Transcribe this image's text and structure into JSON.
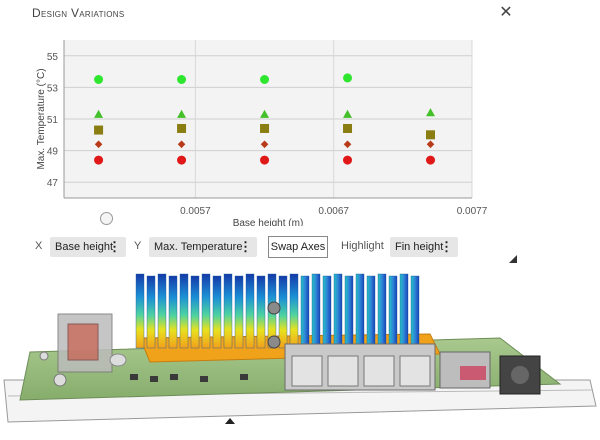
{
  "panel": {
    "title": "Design Variations",
    "close_icon": "close-icon"
  },
  "chart_data": {
    "type": "scatter",
    "title": "",
    "xlabel": "Base height (m)",
    "ylabel": "Max. Temperature (°C)",
    "xlim": [
      0.00475,
      0.0077
    ],
    "ylim": [
      46,
      56
    ],
    "xticks": [
      0.0057,
      0.0067,
      0.0077
    ],
    "xtick_labels": [
      "0.0057",
      "0.0067",
      "0.0077"
    ],
    "yticks": [
      47,
      49,
      51,
      53,
      55
    ],
    "grid": true,
    "series": [
      {
        "color": "#2ee62e",
        "marker": "circle",
        "x": [
          0.005,
          0.0056,
          0.0062,
          0.0068,
          0.0074
        ],
        "y": [
          53.5,
          53.5,
          53.5,
          53.6,
          null
        ]
      },
      {
        "color": "#43c02a",
        "marker": "triangle",
        "x": [
          0.005,
          0.0056,
          0.0062,
          0.0068,
          0.0074
        ],
        "y": [
          51.3,
          51.3,
          51.3,
          51.3,
          51.4
        ]
      },
      {
        "color": "#8a7d12",
        "marker": "square",
        "x": [
          0.005,
          0.0056,
          0.0062,
          0.0068,
          0.0074
        ],
        "y": [
          50.3,
          50.4,
          50.4,
          50.4,
          50.0
        ]
      },
      {
        "color": "#b83a18",
        "marker": "diamond",
        "x": [
          0.005,
          0.0056,
          0.0062,
          0.0068,
          0.0074
        ],
        "y": [
          49.4,
          49.4,
          49.4,
          49.4,
          49.4
        ]
      },
      {
        "color": "#e01818",
        "marker": "circle",
        "x": [
          0.005,
          0.0056,
          0.0062,
          0.0068,
          0.0074
        ],
        "y": [
          48.4,
          48.4,
          48.4,
          48.4,
          48.4
        ]
      }
    ]
  },
  "controls": {
    "x_label": "X",
    "x_value": "Base height",
    "y_label": "Y",
    "y_value": "Max. Temperature",
    "swap_label": "Swap Axes",
    "highlight_label": "Highlight",
    "highlight_value": "Fin height"
  }
}
